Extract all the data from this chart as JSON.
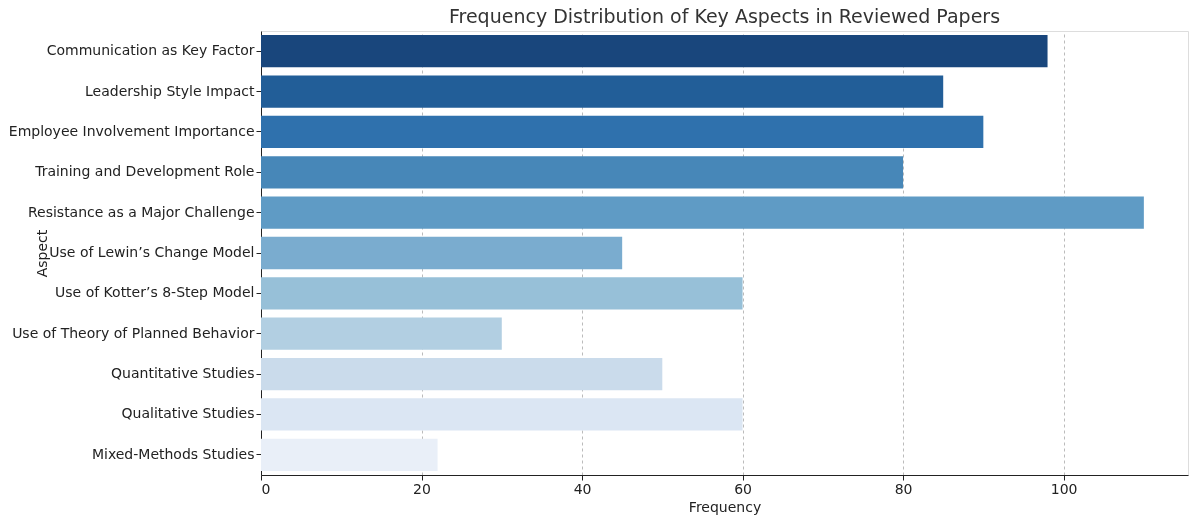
{
  "chart_data": {
    "type": "bar",
    "orientation": "horizontal",
    "title": "Frequency Distribution of Key Aspects in Reviewed Papers",
    "xlabel": "Frequency",
    "ylabel": "Aspect",
    "categories": [
      "Communication as Key Factor",
      "Leadership Style Impact",
      "Employee Involvement Importance",
      "Training and Development Role",
      "Resistance as a Major Challenge",
      "Use of Lewin’s Change Model",
      "Use of Kotter’s 8-Step Model",
      "Use of Theory of Planned Behavior",
      "Quantitative Studies",
      "Qualitative Studies",
      "Mixed-Methods Studies"
    ],
    "values": [
      98,
      85,
      90,
      80,
      110,
      45,
      60,
      30,
      50,
      60,
      22
    ],
    "colors": [
      "#19467c",
      "#225e98",
      "#2f71ad",
      "#4787b8",
      "#5f9bc5",
      "#7aaccf",
      "#97c0d8",
      "#b2cfe2",
      "#cadbeb",
      "#dbe6f3",
      "#e9eff8"
    ],
    "xlim": [
      0,
      115.5
    ],
    "xticks": [
      0,
      20,
      40,
      60,
      80,
      100
    ],
    "grid": "x",
    "legend": false
  }
}
